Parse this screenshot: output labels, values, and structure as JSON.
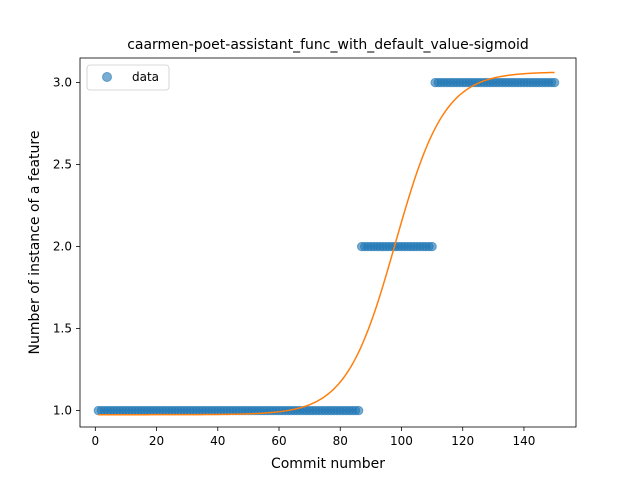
{
  "chart_data": {
    "type": "scatter",
    "title": "caarmen-poet-assistant_func_with_default_value-sigmoid",
    "xlabel": "Commit number",
    "ylabel": "Number of instance of a feature",
    "xlim": [
      -5,
      157
    ],
    "ylim": [
      0.9,
      3.15
    ],
    "xticks": [
      0,
      20,
      40,
      60,
      80,
      100,
      120,
      140
    ],
    "yticks": [
      1.0,
      1.5,
      2.0,
      2.5,
      3.0
    ],
    "xtick_labels": [
      "0",
      "20",
      "40",
      "60",
      "80",
      "100",
      "120",
      "140"
    ],
    "ytick_labels": [
      "1.0",
      "1.5",
      "2.0",
      "2.5",
      "3.0"
    ],
    "grid": false,
    "legend_position": "upper-left",
    "series": [
      {
        "name": "data",
        "kind": "scatter",
        "color": "#1f77b4",
        "segments": [
          {
            "x_start": 1,
            "x_end": 86,
            "y": 1
          },
          {
            "x_start": 87,
            "x_end": 110,
            "y": 2
          },
          {
            "x_start": 111,
            "x_end": 150,
            "y": 3
          }
        ]
      },
      {
        "kind": "line",
        "color": "#ff7f0e",
        "model": "sigmoid",
        "params": {
          "L": 2.09,
          "k": 0.125,
          "x0": 98,
          "b": 0.975
        },
        "x_range": [
          1,
          150
        ]
      }
    ]
  }
}
